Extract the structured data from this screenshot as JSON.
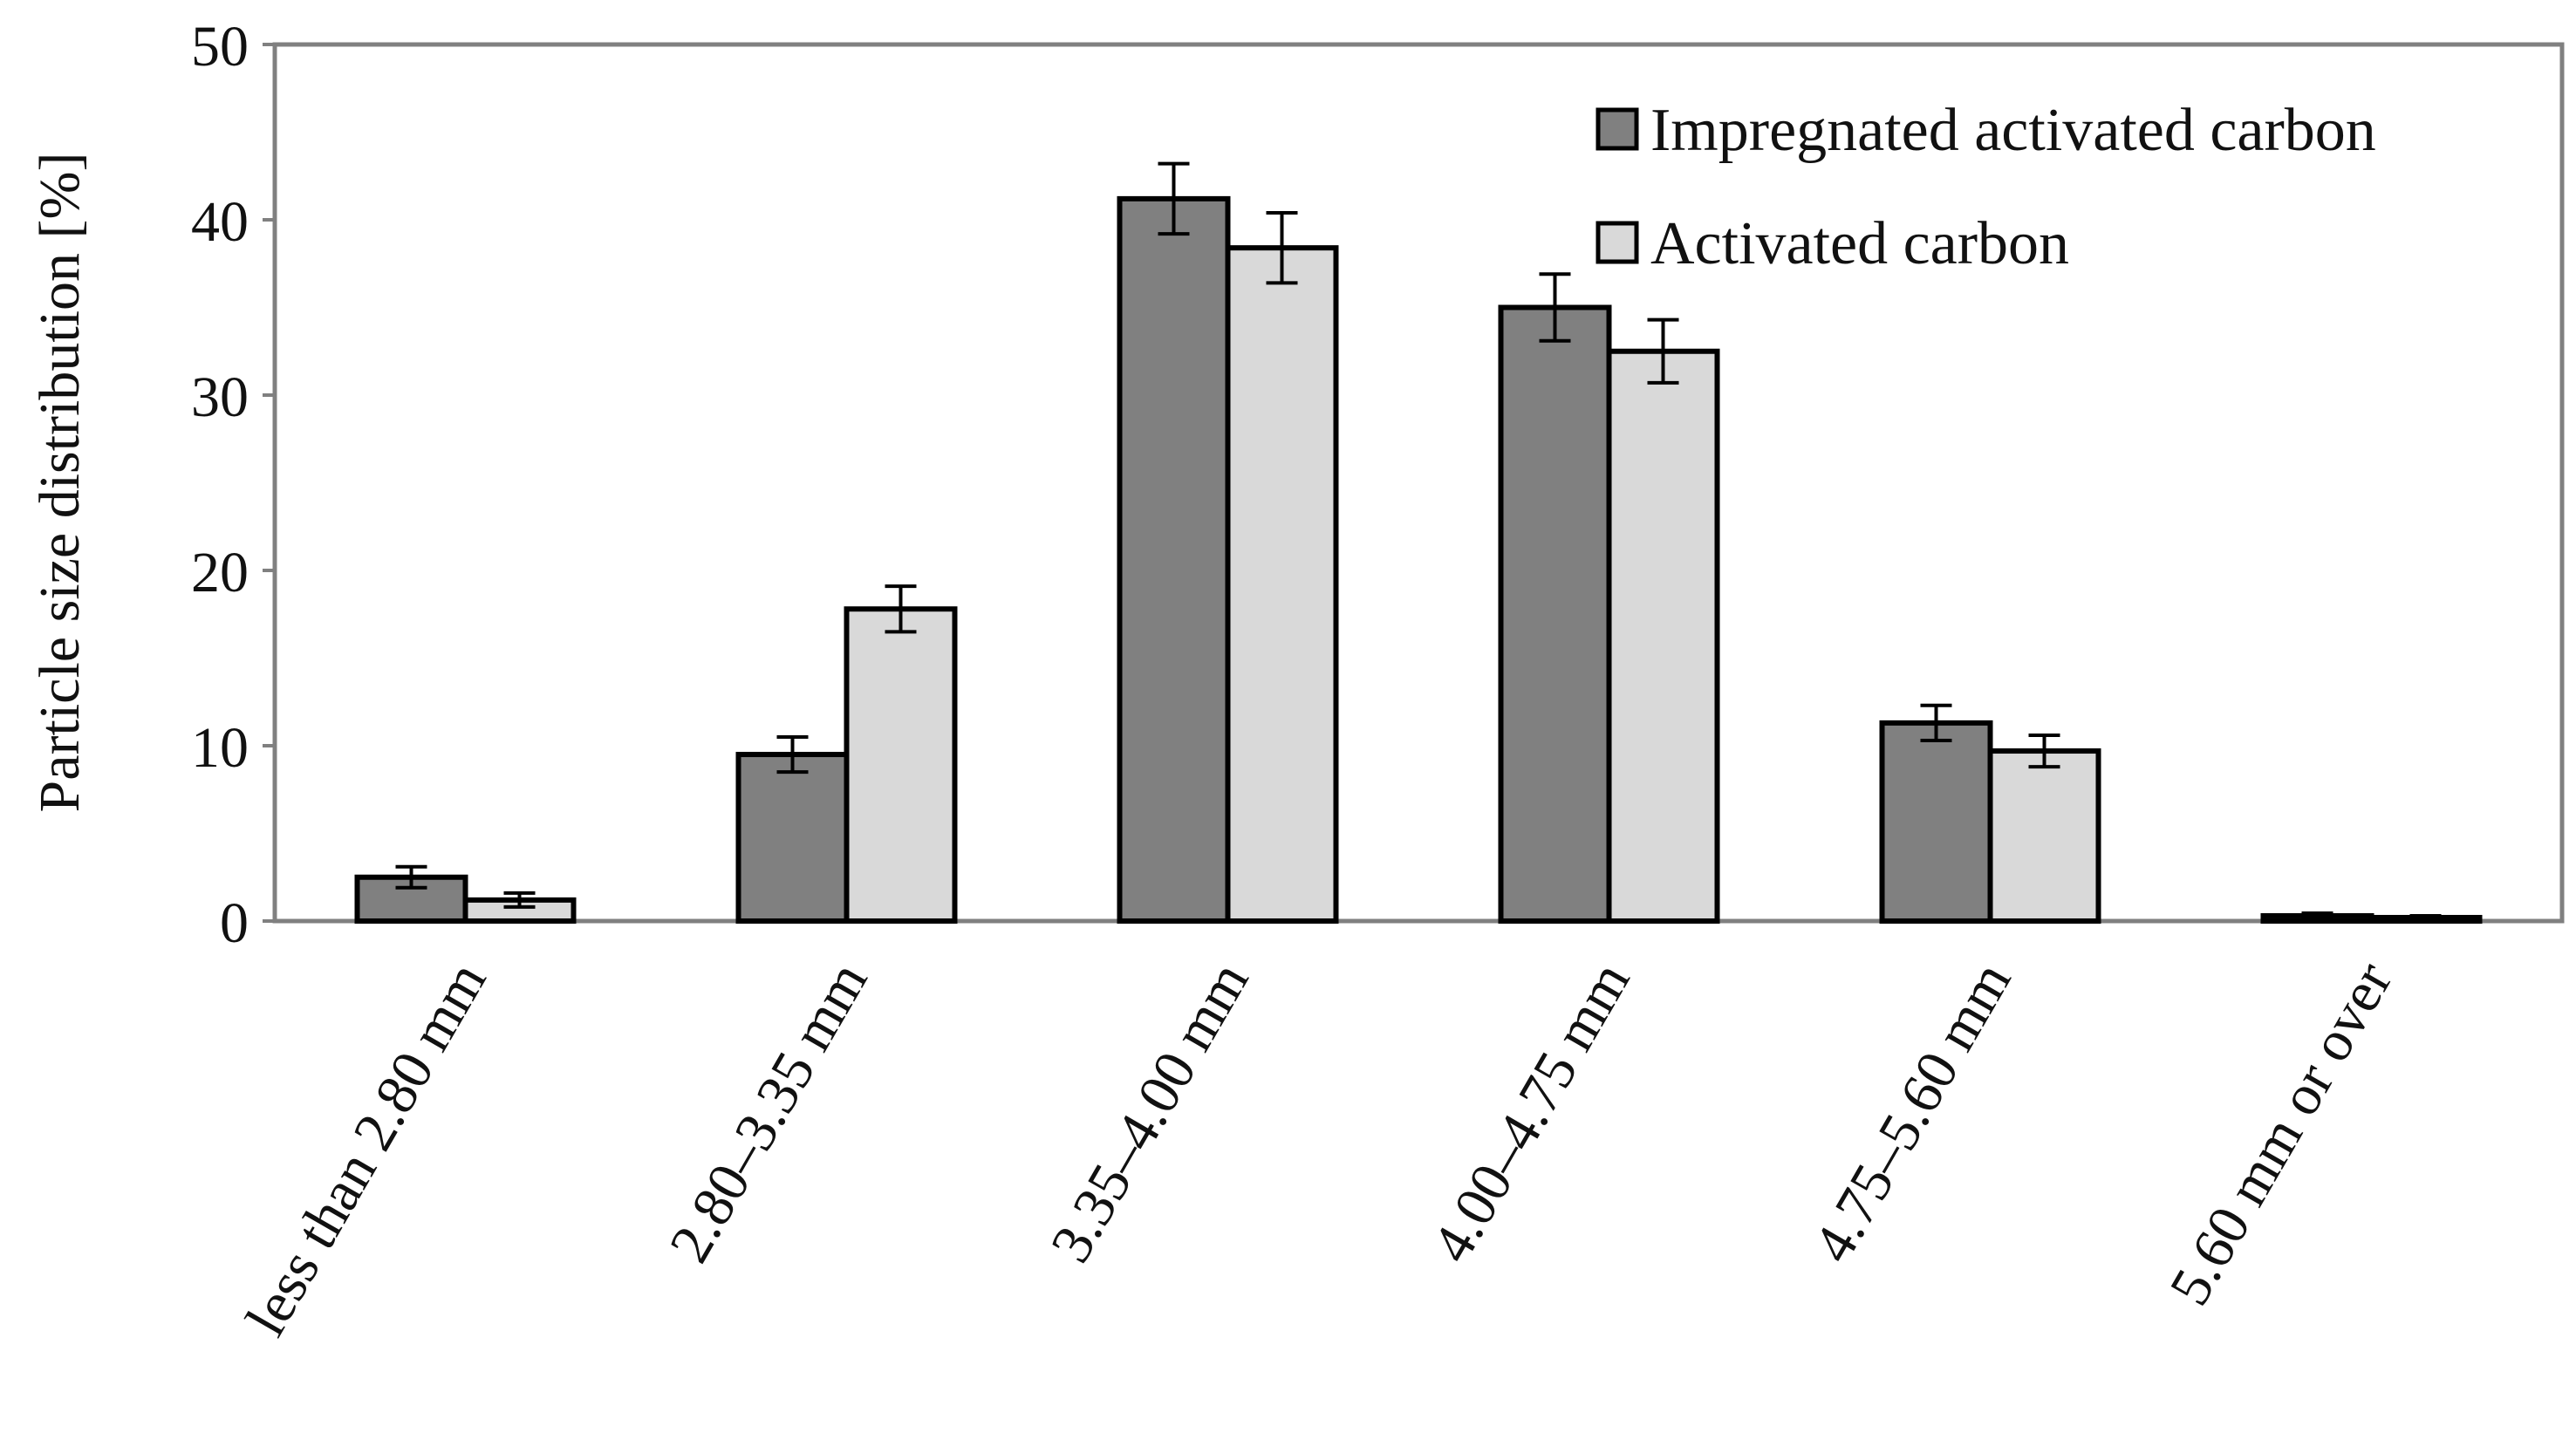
{
  "chart_data": {
    "type": "bar",
    "title": "",
    "xlabel": "",
    "ylabel": "Particle size distribution [%]",
    "ylim": [
      0,
      50
    ],
    "yticks": [
      0,
      10,
      20,
      30,
      40,
      50
    ],
    "grid": false,
    "legend_position": "top-right",
    "categories": [
      "less than 2.80 mm",
      "2.80–3.35 mm",
      "3.35–4.00 mm",
      "4.00–4.75 mm",
      "4.75–5.60 mm",
      "5.60 mm or over"
    ],
    "series": [
      {
        "name": "Impregnated activated carbon",
        "color": "#808080",
        "values": [
          2.5,
          9.5,
          41.2,
          35.0,
          11.3,
          0.3
        ],
        "errors": [
          0.6,
          1.0,
          2.0,
          1.9,
          1.0,
          0.15
        ]
      },
      {
        "name": "Activated carbon",
        "color": "#d9d9d9",
        "values": [
          1.2,
          17.8,
          38.4,
          32.5,
          9.7,
          0.2
        ],
        "errors": [
          0.4,
          1.3,
          2.0,
          1.8,
          0.9,
          0.1
        ]
      }
    ]
  }
}
